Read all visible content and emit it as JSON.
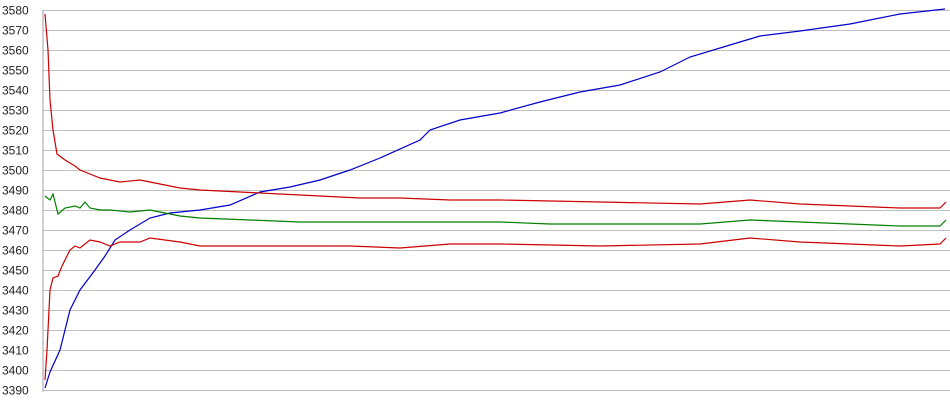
{
  "chart_data": {
    "type": "line",
    "title": "",
    "xlabel": "",
    "ylabel": "",
    "ylim": [
      3390,
      3580
    ],
    "xlim": [
      0,
      901
    ],
    "yticks": [
      3580,
      3570,
      3560,
      3550,
      3540,
      3530,
      3520,
      3510,
      3500,
      3490,
      3480,
      3470,
      3460,
      3450,
      3440,
      3430,
      3420,
      3410,
      3400,
      3390
    ],
    "grid": "horizontal",
    "legend": "none",
    "series": [
      {
        "color": "#0000cc",
        "points": [
          [
            0,
            3391
          ],
          [
            5,
            3399
          ],
          [
            15,
            3410
          ],
          [
            25,
            3430
          ],
          [
            35,
            3440
          ],
          [
            50,
            3450
          ],
          [
            60,
            3457
          ],
          [
            70,
            3465
          ],
          [
            85,
            3470
          ],
          [
            105,
            3476
          ],
          [
            125,
            3478.5
          ],
          [
            155,
            3480
          ],
          [
            185,
            3482.5
          ],
          [
            215,
            3489
          ],
          [
            245,
            3491.5
          ],
          [
            275,
            3495
          ],
          [
            305,
            3500
          ],
          [
            335,
            3506
          ],
          [
            375,
            3515
          ],
          [
            385,
            3520
          ],
          [
            415,
            3525
          ],
          [
            455,
            3528.5
          ],
          [
            495,
            3534
          ],
          [
            535,
            3539
          ],
          [
            575,
            3542.5
          ],
          [
            615,
            3549
          ],
          [
            645,
            3556.5
          ],
          [
            685,
            3562.5
          ],
          [
            715,
            3567
          ],
          [
            755,
            3569.5
          ],
          [
            805,
            3573
          ],
          [
            855,
            3578
          ],
          [
            900,
            3580.5
          ]
        ]
      },
      {
        "color": "#cc0000",
        "points": [
          [
            0,
            3578
          ],
          [
            3,
            3560
          ],
          [
            5,
            3535
          ],
          [
            8,
            3520
          ],
          [
            12,
            3508
          ],
          [
            20,
            3505
          ],
          [
            30,
            3502
          ],
          [
            35,
            3500
          ],
          [
            45,
            3498
          ],
          [
            55,
            3496
          ],
          [
            75,
            3494
          ],
          [
            95,
            3495
          ],
          [
            105,
            3494
          ],
          [
            135,
            3491
          ],
          [
            155,
            3490
          ],
          [
            195,
            3489
          ],
          [
            235,
            3488
          ],
          [
            275,
            3487
          ],
          [
            315,
            3486
          ],
          [
            355,
            3486
          ],
          [
            405,
            3485
          ],
          [
            455,
            3485
          ],
          [
            555,
            3484
          ],
          [
            655,
            3483
          ],
          [
            705,
            3485
          ],
          [
            755,
            3483
          ],
          [
            805,
            3482
          ],
          [
            855,
            3481
          ],
          [
            895,
            3481
          ],
          [
            901,
            3484
          ]
        ]
      },
      {
        "color": "#008000",
        "points": [
          [
            0,
            3487
          ],
          [
            5,
            3485
          ],
          [
            8,
            3488
          ],
          [
            13,
            3478
          ],
          [
            20,
            3481
          ],
          [
            30,
            3482
          ],
          [
            35,
            3481
          ],
          [
            40,
            3484
          ],
          [
            45,
            3481
          ],
          [
            55,
            3480
          ],
          [
            65,
            3480
          ],
          [
            85,
            3479
          ],
          [
            105,
            3480
          ],
          [
            135,
            3477
          ],
          [
            155,
            3476
          ],
          [
            205,
            3475
          ],
          [
            255,
            3474
          ],
          [
            305,
            3474
          ],
          [
            355,
            3474
          ],
          [
            405,
            3474
          ],
          [
            455,
            3474
          ],
          [
            505,
            3473
          ],
          [
            555,
            3473
          ],
          [
            655,
            3473
          ],
          [
            705,
            3475
          ],
          [
            755,
            3474
          ],
          [
            805,
            3473
          ],
          [
            855,
            3472
          ],
          [
            895,
            3472
          ],
          [
            901,
            3475
          ]
        ]
      },
      {
        "color": "#cc0000",
        "points": [
          [
            0,
            3395
          ],
          [
            2,
            3410
          ],
          [
            5,
            3440
          ],
          [
            8,
            3446
          ],
          [
            13,
            3447
          ],
          [
            17,
            3452
          ],
          [
            25,
            3460
          ],
          [
            30,
            3462
          ],
          [
            35,
            3461
          ],
          [
            45,
            3465
          ],
          [
            55,
            3464
          ],
          [
            65,
            3462
          ],
          [
            75,
            3464
          ],
          [
            95,
            3464
          ],
          [
            105,
            3466
          ],
          [
            135,
            3464
          ],
          [
            155,
            3462
          ],
          [
            205,
            3462
          ],
          [
            255,
            3462
          ],
          [
            305,
            3462
          ],
          [
            355,
            3461
          ],
          [
            405,
            3463
          ],
          [
            455,
            3463
          ],
          [
            555,
            3462
          ],
          [
            655,
            3463
          ],
          [
            705,
            3466
          ],
          [
            755,
            3464
          ],
          [
            805,
            3463
          ],
          [
            855,
            3462
          ],
          [
            895,
            3463
          ],
          [
            901,
            3466
          ]
        ]
      }
    ]
  }
}
